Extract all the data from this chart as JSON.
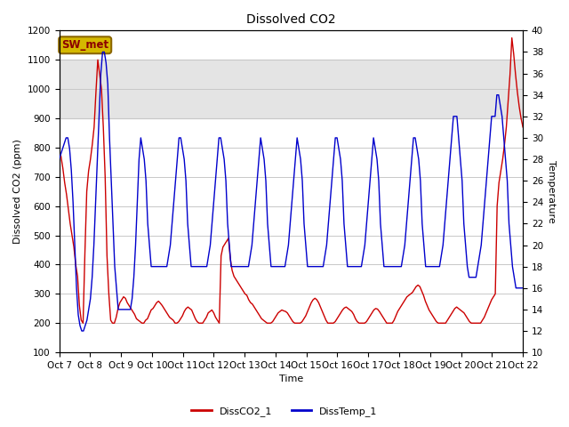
{
  "title": "Dissolved CO2",
  "xlabel": "Time",
  "ylabel_left": "Dissolved CO2 (ppm)",
  "ylabel_right": "Temperature",
  "ylim_left": [
    100,
    1200
  ],
  "ylim_right": [
    10,
    40
  ],
  "yticks_left": [
    100,
    200,
    300,
    400,
    500,
    600,
    700,
    800,
    900,
    1000,
    1100,
    1200
  ],
  "yticks_right": [
    10,
    12,
    14,
    16,
    18,
    20,
    22,
    24,
    26,
    28,
    30,
    32,
    34,
    36,
    38,
    40
  ],
  "shade_band": [
    900,
    1100
  ],
  "xtick_labels": [
    "Oct 7",
    "Oct 8",
    "Oct 9",
    "Oct 10",
    "Oct 11",
    "Oct 12",
    "Oct 13",
    "Oct 14",
    "Oct 15",
    "Oct 16",
    "Oct 17",
    "Oct 18",
    "Oct 19",
    "Oct 20",
    "Oct 21",
    "Oct 22"
  ],
  "sw_met_label": "SW_met",
  "sw_met_box_color": "#d4b800",
  "sw_met_text_color": "#8b0000",
  "sw_met_edge_color": "#8b6600",
  "legend_entries": [
    "DissCO2_1",
    "DissTemp_1"
  ],
  "line_colors": [
    "#cc0000",
    "#0000cc"
  ],
  "background_color": "#ffffff",
  "plot_background": "#ffffff",
  "grid_color": "#c8c8c8",
  "shade_color": "#d3d3d3",
  "shade_alpha": 0.6,
  "title_fontsize": 10,
  "axis_label_fontsize": 8,
  "tick_fontsize": 7.5,
  "legend_fontsize": 8,
  "line_width": 1.0,
  "co2_data": [
    790,
    770,
    730,
    680,
    640,
    590,
    540,
    500,
    460,
    400,
    360,
    260,
    210,
    200,
    440,
    650,
    720,
    760,
    810,
    870,
    990,
    1100,
    1050,
    1000,
    870,
    700,
    430,
    300,
    210,
    200,
    200,
    220,
    250,
    270,
    280,
    290,
    285,
    270,
    260,
    250,
    240,
    230,
    215,
    210,
    205,
    200,
    200,
    210,
    215,
    230,
    245,
    250,
    260,
    270,
    275,
    268,
    260,
    250,
    240,
    230,
    220,
    215,
    210,
    200,
    200,
    205,
    215,
    225,
    240,
    250,
    255,
    250,
    245,
    230,
    215,
    205,
    200,
    200,
    200,
    210,
    220,
    235,
    240,
    245,
    235,
    220,
    210,
    200,
    430,
    460,
    470,
    480,
    490,
    420,
    380,
    360,
    350,
    340,
    330,
    320,
    310,
    300,
    295,
    280,
    270,
    265,
    255,
    245,
    235,
    225,
    215,
    210,
    205,
    200,
    200,
    200,
    205,
    215,
    225,
    235,
    240,
    245,
    242,
    240,
    235,
    225,
    215,
    205,
    200,
    200,
    200,
    200,
    205,
    215,
    225,
    240,
    255,
    270,
    280,
    285,
    280,
    270,
    255,
    240,
    225,
    210,
    200,
    200,
    200,
    200,
    205,
    215,
    225,
    235,
    245,
    252,
    255,
    250,
    245,
    240,
    230,
    215,
    205,
    200,
    200,
    200,
    200,
    205,
    215,
    225,
    235,
    245,
    250,
    248,
    240,
    230,
    220,
    210,
    200,
    200,
    200,
    200,
    210,
    225,
    240,
    250,
    260,
    270,
    280,
    290,
    295,
    300,
    305,
    315,
    325,
    330,
    325,
    310,
    295,
    275,
    260,
    245,
    235,
    225,
    215,
    205,
    200,
    200,
    200,
    200,
    200,
    210,
    220,
    230,
    240,
    250,
    255,
    250,
    245,
    240,
    235,
    225,
    215,
    205,
    200,
    200,
    200,
    200,
    200,
    200,
    210,
    220,
    235,
    250,
    265,
    280,
    290,
    300,
    600,
    680,
    720,
    760,
    810,
    870,
    960,
    1050,
    1175,
    1120,
    1050,
    990,
    940,
    900,
    870
  ],
  "temp_data": [
    28,
    28.5,
    29,
    29.5,
    30,
    30,
    29,
    27,
    24,
    20,
    16,
    13.5,
    12.5,
    12,
    12,
    12.5,
    13,
    14,
    15,
    17,
    20,
    24,
    28,
    32,
    36,
    38,
    38,
    37,
    35,
    30,
    26,
    22,
    18,
    16,
    14,
    14,
    14,
    14,
    14,
    14,
    14,
    14,
    15,
    17,
    20,
    24,
    28,
    30,
    29,
    28,
    26,
    22,
    20,
    18,
    18,
    18,
    18,
    18,
    18,
    18,
    18,
    18,
    18,
    19,
    20,
    22,
    24,
    26,
    28,
    30,
    30,
    29,
    28,
    26,
    22,
    20,
    18,
    18,
    18,
    18,
    18,
    18,
    18,
    18,
    18,
    18,
    19,
    20,
    22,
    24,
    26,
    28,
    30,
    30,
    29,
    28,
    26,
    22,
    20,
    18,
    18,
    18,
    18,
    18,
    18,
    18,
    18,
    18,
    18,
    18,
    19,
    20,
    22,
    24,
    26,
    28,
    30,
    29,
    28,
    26,
    22,
    20,
    18,
    18,
    18,
    18,
    18,
    18,
    18,
    18,
    18,
    19,
    20,
    22,
    24,
    26,
    28,
    30,
    29,
    28,
    26,
    22,
    20,
    18,
    18,
    18,
    18,
    18,
    18,
    18,
    18,
    18,
    18,
    19,
    20,
    22,
    24,
    26,
    28,
    30,
    30,
    29,
    28,
    26,
    22,
    20,
    18,
    18,
    18,
    18,
    18,
    18,
    18,
    18,
    18,
    19,
    20,
    22,
    24,
    26,
    28,
    30,
    29,
    28,
    26,
    22,
    20,
    18,
    18,
    18,
    18,
    18,
    18,
    18,
    18,
    18,
    18,
    18,
    19,
    20,
    22,
    24,
    26,
    28,
    30,
    30,
    29,
    28,
    26,
    22,
    20,
    18,
    18,
    18,
    18,
    18,
    18,
    18,
    18,
    18,
    19,
    20,
    22,
    24,
    26,
    28,
    30,
    32,
    32,
    32,
    30,
    28,
    26,
    22,
    20,
    18,
    17,
    17,
    17,
    17,
    17,
    18,
    19,
    20,
    22,
    24,
    26,
    28,
    30,
    32,
    32,
    32,
    34,
    34,
    33,
    32,
    30,
    28,
    26,
    22,
    20,
    18,
    17,
    16,
    16,
    16,
    16,
    16
  ]
}
